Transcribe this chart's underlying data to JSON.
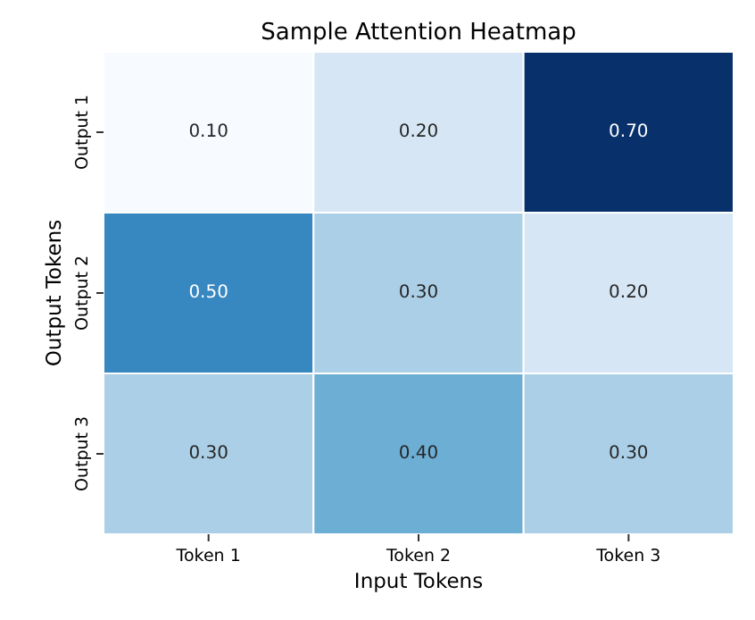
{
  "chart_data": {
    "type": "heatmap",
    "title": "Sample Attention Heatmap",
    "xlabel": "Input Tokens",
    "ylabel": "Output Tokens",
    "categories": [
      "Token 1",
      "Token 2",
      "Token 3"
    ],
    "y_categories": [
      "Output 1",
      "Output 2",
      "Output 3"
    ],
    "cells": [
      [
        0.1,
        0.2,
        0.7
      ],
      [
        0.5,
        0.3,
        0.2
      ],
      [
        0.3,
        0.4,
        0.3
      ]
    ],
    "cell_labels": [
      [
        "0.10",
        "0.20",
        "0.70"
      ],
      [
        "0.50",
        "0.30",
        "0.20"
      ],
      [
        "0.30",
        "0.40",
        "0.30"
      ]
    ],
    "data_labels": true
  }
}
